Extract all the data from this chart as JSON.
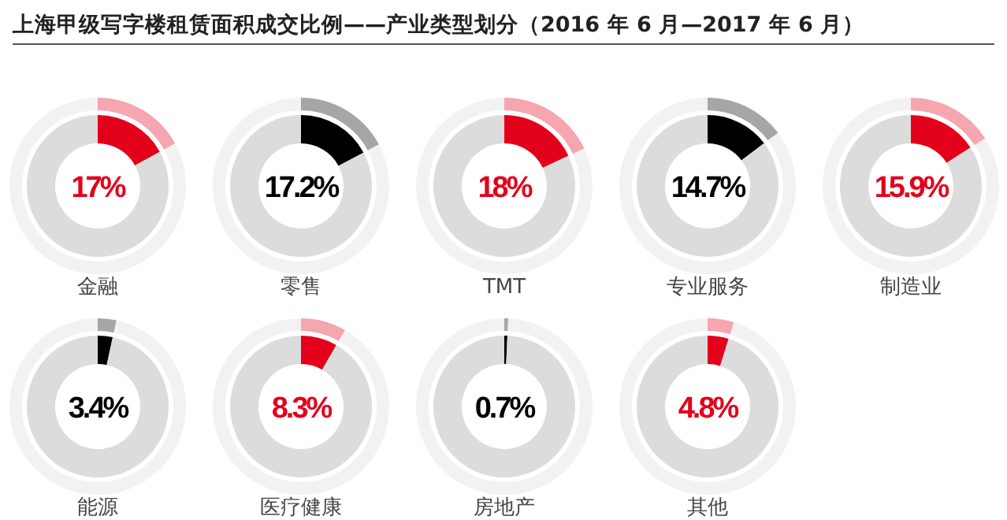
{
  "chart_data": [
    {
      "type": "donut",
      "title": "上海甲级写字楼租赁面积成交比例——产业类型划分（2016 年 6 月—2017 年 6 月）",
      "xlabel": "金融",
      "categories": [
        null,
        null
      ],
      "values": [
        17,
        83
      ],
      "colors": [
        "#e3001b",
        "#dcdcdc"
      ],
      "annotations": [
        "17%"
      ]
    },
    {
      "type": "donut",
      "xlabel": "零售",
      "categories": [
        null,
        null
      ],
      "values": [
        17.2,
        82.8
      ],
      "colors": [
        "#000000",
        "#dcdcdc"
      ],
      "annotations": [
        "17.2%"
      ]
    },
    {
      "type": "donut",
      "xlabel": "TMT",
      "categories": [
        null,
        null
      ],
      "values": [
        18,
        82
      ],
      "colors": [
        "#e3001b",
        "#dcdcdc"
      ],
      "annotations": [
        "18%"
      ]
    },
    {
      "type": "donut",
      "xlabel": "专业服务",
      "categories": [
        null,
        null
      ],
      "values": [
        14.7,
        85.3
      ],
      "colors": [
        "#000000",
        "#dcdcdc"
      ],
      "annotations": [
        "14.7%"
      ]
    },
    {
      "type": "donut",
      "xlabel": "制造业",
      "categories": [
        null,
        null
      ],
      "values": [
        15.9,
        84.1
      ],
      "colors": [
        "#e3001b",
        "#dcdcdc"
      ],
      "annotations": [
        "15.9%"
      ]
    },
    {
      "type": "donut",
      "xlabel": "能源",
      "categories": [
        null,
        null
      ],
      "values": [
        3.4,
        96.6
      ],
      "colors": [
        "#000000",
        "#dcdcdc"
      ],
      "annotations": [
        "3.4%"
      ]
    },
    {
      "type": "donut",
      "xlabel": "医疗健康",
      "categories": [
        null,
        null
      ],
      "values": [
        8.3,
        91.7
      ],
      "colors": [
        "#e3001b",
        "#dcdcdc"
      ],
      "annotations": [
        "8.3%"
      ]
    },
    {
      "type": "donut",
      "xlabel": "房地产",
      "categories": [
        null,
        null
      ],
      "values": [
        0.7,
        99.3
      ],
      "colors": [
        "#000000",
        "#dcdcdc"
      ],
      "annotations": [
        "0.7%"
      ]
    },
    {
      "type": "donut",
      "xlabel": "其他",
      "categories": [
        null,
        null
      ],
      "values": [
        4.8,
        95.2
      ],
      "colors": [
        "#e3001b",
        "#dcdcdc"
      ],
      "annotations": [
        "4.8%"
      ]
    }
  ]
}
